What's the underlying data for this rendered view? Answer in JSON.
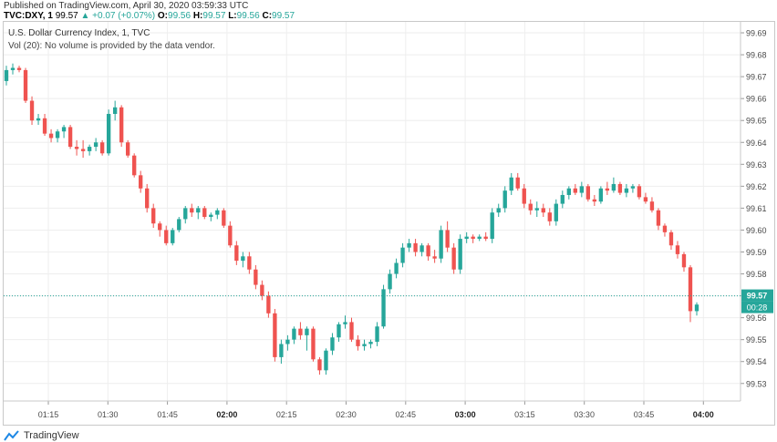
{
  "published": "Published on TradingView.com, April 30, 2020 03:59:33 UTC",
  "header": {
    "symbol": "TVC:DXY, 1",
    "price": "99.57",
    "change": "▲ +0.07 (+0.07%)",
    "o_label": "O:",
    "o_val": "99.56",
    "h_label": "H:",
    "h_val": "99.57",
    "l_label": "L:",
    "l_val": "99.56",
    "c_label": "C:",
    "c_val": "99.57"
  },
  "chart_title": "U.S. Dollar Currency Index, 1, TVC",
  "volume_note": "Vol (20): No volume is provided by the data vendor.",
  "footer_brand": "TradingView",
  "colors": {
    "up": "#26a69a",
    "down": "#ef5350",
    "grid": "#eeeeee",
    "axis_text": "#4a4a4a"
  },
  "chart_data": {
    "type": "candlestick",
    "title": "U.S. Dollar Currency Index, 1, TVC",
    "y_ticks": [
      "99.53",
      "99.54",
      "99.55",
      "99.56",
      "99.57",
      "99.58",
      "99.59",
      "99.60",
      "99.61",
      "99.62",
      "99.63",
      "99.64",
      "99.65",
      "99.66",
      "99.67",
      "99.68",
      "99.69"
    ],
    "ylim": [
      99.522,
      99.695
    ],
    "x_ticks": [
      "01:15",
      "01:30",
      "01:45",
      "02:00",
      "02:15",
      "02:30",
      "02:45",
      "03:00",
      "03:15",
      "03:30",
      "03:45",
      "04:00"
    ],
    "x_ticks_bold": [
      "02:00",
      "03:00",
      "04:00"
    ],
    "last_price": "99.57",
    "countdown": "00:28",
    "candles": [
      [
        99.668,
        99.675,
        99.666,
        99.673
      ],
      [
        99.673,
        99.676,
        99.671,
        99.674
      ],
      [
        99.674,
        99.675,
        99.672,
        99.673
      ],
      [
        99.673,
        99.674,
        99.658,
        99.659
      ],
      [
        99.659,
        99.661,
        99.648,
        99.65
      ],
      [
        99.65,
        99.653,
        99.648,
        99.651
      ],
      [
        99.651,
        99.653,
        99.643,
        99.644
      ],
      [
        99.644,
        99.646,
        99.64,
        99.642
      ],
      [
        99.642,
        99.646,
        99.64,
        99.645
      ],
      [
        99.645,
        99.648,
        99.642,
        99.647
      ],
      [
        99.647,
        99.648,
        99.637,
        99.638
      ],
      [
        99.638,
        99.641,
        99.634,
        99.637
      ],
      [
        99.637,
        99.641,
        99.633,
        99.636
      ],
      [
        99.636,
        99.639,
        99.634,
        99.638
      ],
      [
        99.638,
        99.642,
        99.636,
        99.64
      ],
      [
        99.64,
        99.641,
        99.634,
        99.635
      ],
      [
        99.635,
        99.655,
        99.634,
        99.653
      ],
      [
        99.653,
        99.659,
        99.65,
        99.656
      ],
      [
        99.656,
        99.657,
        99.638,
        99.64
      ],
      [
        99.64,
        99.641,
        99.633,
        99.634
      ],
      [
        99.634,
        99.635,
        99.624,
        99.625
      ],
      [
        99.625,
        99.627,
        99.617,
        99.619
      ],
      [
        99.619,
        99.621,
        99.608,
        99.61
      ],
      [
        99.61,
        99.612,
        99.601,
        99.603
      ],
      [
        99.603,
        99.604,
        99.597,
        99.6
      ],
      [
        99.6,
        99.602,
        99.593,
        99.594
      ],
      [
        99.594,
        99.601,
        99.593,
        99.6
      ],
      [
        99.6,
        99.606,
        99.599,
        99.605
      ],
      [
        99.605,
        99.611,
        99.603,
        99.61
      ],
      [
        99.61,
        99.612,
        99.606,
        99.608
      ],
      [
        99.608,
        99.611,
        99.605,
        99.61
      ],
      [
        99.61,
        99.611,
        99.605,
        99.606
      ],
      [
        99.606,
        99.608,
        99.604,
        99.607
      ],
      [
        99.607,
        99.61,
        99.605,
        99.609
      ],
      [
        99.609,
        99.61,
        99.601,
        99.602
      ],
      [
        99.602,
        99.604,
        99.592,
        99.593
      ],
      [
        99.593,
        99.595,
        99.584,
        99.586
      ],
      [
        99.586,
        99.59,
        99.583,
        99.588
      ],
      [
        99.588,
        99.59,
        99.58,
        99.582
      ],
      [
        99.582,
        99.584,
        99.573,
        99.575
      ],
      [
        99.575,
        99.577,
        99.568,
        99.57
      ],
      [
        99.57,
        99.572,
        99.56,
        99.562
      ],
      [
        99.562,
        99.564,
        99.54,
        99.542
      ],
      [
        99.542,
        99.55,
        99.539,
        99.548
      ],
      [
        99.548,
        99.552,
        99.545,
        99.55
      ],
      [
        99.55,
        99.556,
        99.548,
        99.555
      ],
      [
        99.555,
        99.558,
        99.55,
        99.552
      ],
      [
        99.552,
        99.556,
        99.545,
        99.555
      ],
      [
        99.555,
        99.556,
        99.54,
        99.541
      ],
      [
        99.541,
        99.542,
        99.534,
        99.536
      ],
      [
        99.536,
        99.546,
        99.534,
        99.545
      ],
      [
        99.545,
        99.553,
        99.543,
        99.551
      ],
      [
        99.551,
        99.558,
        99.549,
        99.557
      ],
      [
        99.557,
        99.561,
        99.555,
        99.558
      ],
      [
        99.558,
        99.56,
        99.549,
        99.55
      ],
      [
        99.55,
        99.552,
        99.545,
        99.547
      ],
      [
        99.547,
        99.55,
        99.545,
        99.548
      ],
      [
        99.548,
        99.55,
        99.546,
        99.549
      ],
      [
        99.549,
        99.558,
        99.547,
        99.556
      ],
      [
        99.556,
        99.575,
        99.555,
        99.573
      ],
      [
        99.573,
        99.582,
        99.571,
        99.58
      ],
      [
        99.58,
        99.587,
        99.578,
        99.585
      ],
      [
        99.585,
        99.594,
        99.583,
        99.592
      ],
      [
        99.592,
        99.596,
        99.59,
        99.594
      ],
      [
        99.594,
        99.596,
        99.588,
        99.59
      ],
      [
        99.59,
        99.594,
        99.588,
        99.593
      ],
      [
        99.593,
        99.594,
        99.586,
        99.588
      ],
      [
        99.588,
        99.591,
        99.585,
        99.587
      ],
      [
        99.587,
        99.602,
        99.585,
        99.6
      ],
      [
        99.6,
        99.604,
        99.59,
        99.592
      ],
      [
        99.592,
        99.594,
        99.58,
        99.582
      ],
      [
        99.582,
        99.598,
        99.58,
        99.596
      ],
      [
        99.596,
        99.599,
        99.594,
        99.597
      ],
      [
        99.597,
        99.598,
        99.594,
        99.596
      ],
      [
        99.596,
        99.598,
        99.595,
        99.597
      ],
      [
        99.597,
        99.599,
        99.595,
        99.596
      ],
      [
        99.596,
        99.61,
        99.594,
        99.608
      ],
      [
        99.608,
        99.612,
        99.606,
        99.61
      ],
      [
        99.61,
        99.62,
        99.608,
        99.618
      ],
      [
        99.618,
        99.626,
        99.616,
        99.624
      ],
      [
        99.624,
        99.626,
        99.618,
        99.619
      ],
      [
        99.619,
        99.621,
        99.61,
        99.612
      ],
      [
        99.612,
        99.614,
        99.607,
        99.609
      ],
      [
        99.609,
        99.613,
        99.606,
        99.61
      ],
      [
        99.61,
        99.612,
        99.606,
        99.608
      ],
      [
        99.608,
        99.61,
        99.602,
        99.604
      ],
      [
        99.604,
        99.614,
        99.602,
        99.612
      ],
      [
        99.612,
        99.618,
        99.61,
        99.616
      ],
      [
        99.616,
        99.62,
        99.614,
        99.619
      ],
      [
        99.619,
        99.621,
        99.616,
        99.617
      ],
      [
        99.617,
        99.622,
        99.615,
        99.62
      ],
      [
        99.62,
        99.621,
        99.613,
        99.614
      ],
      [
        99.614,
        99.616,
        99.611,
        99.613
      ],
      [
        99.613,
        99.62,
        99.612,
        99.619
      ],
      [
        99.619,
        99.622,
        99.616,
        99.618
      ],
      [
        99.618,
        99.624,
        99.617,
        99.621
      ],
      [
        99.621,
        99.622,
        99.616,
        99.617
      ],
      [
        99.617,
        99.621,
        99.615,
        99.619
      ],
      [
        99.619,
        99.621,
        99.617,
        99.62
      ],
      [
        99.62,
        99.621,
        99.614,
        99.615
      ],
      [
        99.615,
        99.617,
        99.612,
        99.613
      ],
      [
        99.613,
        99.615,
        99.608,
        99.609
      ],
      [
        99.609,
        99.61,
        99.6,
        99.602
      ],
      [
        99.602,
        99.603,
        99.597,
        99.599
      ],
      [
        99.599,
        99.6,
        99.591,
        99.593
      ],
      [
        99.593,
        99.595,
        99.587,
        99.589
      ],
      [
        99.589,
        99.59,
        99.581,
        99.583
      ],
      [
        99.583,
        99.584,
        99.558,
        99.563
      ],
      [
        99.563,
        99.567,
        99.561,
        99.566
      ]
    ]
  }
}
